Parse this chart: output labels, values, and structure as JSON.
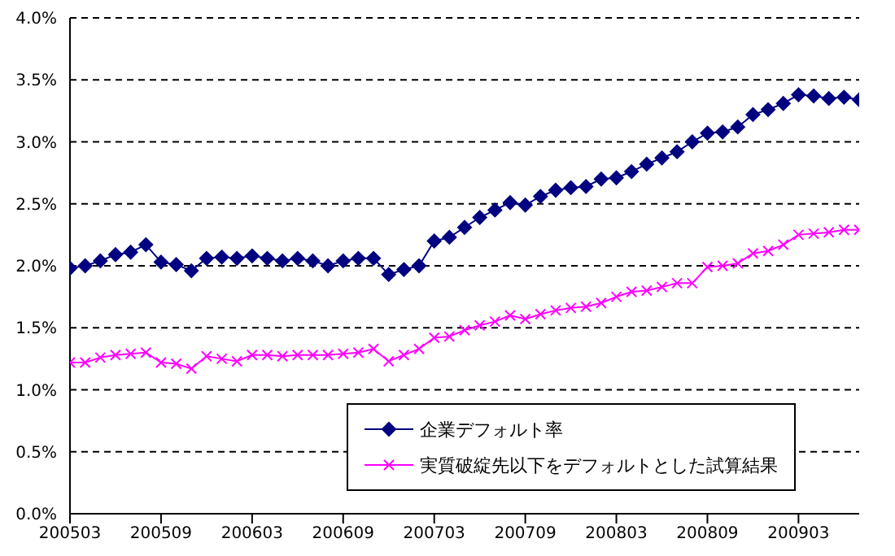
{
  "chart_data": {
    "type": "line",
    "categories": [
      "200503",
      null,
      null,
      null,
      null,
      null,
      "200509",
      null,
      null,
      null,
      null,
      null,
      "200603",
      null,
      null,
      null,
      null,
      null,
      "200609",
      null,
      null,
      null,
      null,
      null,
      "200703",
      null,
      null,
      null,
      null,
      null,
      "200709",
      null,
      null,
      null,
      null,
      null,
      "200803",
      null,
      null,
      null,
      null,
      null,
      "200809",
      null,
      null,
      null,
      null,
      null,
      "200903",
      null,
      null,
      null,
      null
    ],
    "series": [
      {
        "name": "企業デフォルト率",
        "color": "#000080",
        "marker": "diamond",
        "values": [
          1.98,
          2.0,
          2.04,
          2.09,
          2.11,
          2.17,
          2.03,
          2.01,
          1.96,
          2.06,
          2.07,
          2.06,
          2.08,
          2.06,
          2.04,
          2.06,
          2.04,
          2.0,
          2.04,
          2.06,
          2.06,
          1.93,
          1.97,
          2.0,
          2.2,
          2.23,
          2.31,
          2.39,
          2.45,
          2.51,
          2.49,
          2.56,
          2.61,
          2.63,
          2.64,
          2.7,
          2.71,
          2.76,
          2.82,
          2.87,
          2.92,
          3.0,
          3.07,
          3.08,
          3.12,
          3.22,
          3.26,
          3.31,
          3.38,
          3.37,
          3.35,
          3.36,
          3.34
        ]
      },
      {
        "name": "実質破綻先以下をデフォルトとした試算結果",
        "color": "#ff00ff",
        "marker": "cross",
        "values": [
          1.22,
          1.22,
          1.26,
          1.28,
          1.29,
          1.3,
          1.22,
          1.21,
          1.17,
          1.27,
          1.25,
          1.23,
          1.28,
          1.28,
          1.27,
          1.28,
          1.28,
          1.28,
          1.29,
          1.3,
          1.33,
          1.23,
          1.28,
          1.33,
          1.42,
          1.43,
          1.48,
          1.52,
          1.55,
          1.6,
          1.57,
          1.61,
          1.64,
          1.66,
          1.67,
          1.7,
          1.75,
          1.79,
          1.8,
          1.83,
          1.86,
          1.86,
          1.99,
          2.0,
          2.02,
          2.1,
          2.12,
          2.17,
          2.25,
          2.26,
          2.27,
          2.29,
          2.29
        ]
      }
    ],
    "ylim": [
      0,
      4
    ],
    "yticks": [
      {
        "value": 0,
        "label": "0.0%"
      },
      {
        "value": 0.5,
        "label": "0.5%"
      },
      {
        "value": 1,
        "label": "1.0%"
      },
      {
        "value": 1.5,
        "label": "1.5%"
      },
      {
        "value": 2,
        "label": "2.0%"
      },
      {
        "value": 2.5,
        "label": "2.5%"
      },
      {
        "value": 3,
        "label": "3.0%"
      },
      {
        "value": 3.5,
        "label": "3.5%"
      },
      {
        "value": 4,
        "label": "4.0%"
      }
    ],
    "grid": "y",
    "legend": "bottom right",
    "line_style": "solid"
  }
}
